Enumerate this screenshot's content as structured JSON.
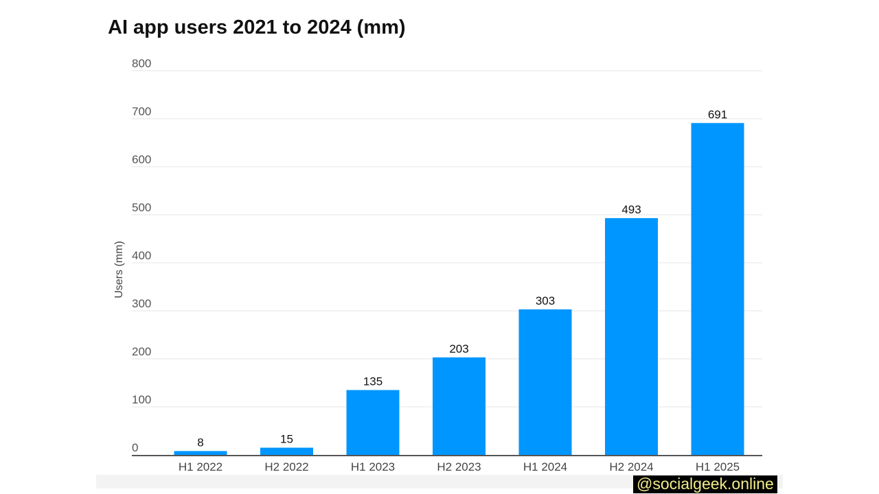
{
  "chart_data": {
    "type": "bar",
    "title": "AI app users 2021 to 2024 (mm)",
    "xlabel": "",
    "ylabel": "Users (mm)",
    "categories": [
      "H1 2022",
      "H2 2022",
      "H1 2023",
      "H2 2023",
      "H1 2024",
      "H2 2024",
      "H1 2025"
    ],
    "values": [
      8,
      15,
      135,
      203,
      303,
      493,
      691
    ],
    "ylim": [
      0,
      800
    ],
    "yticks": [
      0,
      100,
      200,
      300,
      400,
      500,
      600,
      700,
      800
    ],
    "grid": true,
    "bar_color": "#0096ff",
    "data_labels": true
  },
  "watermark": "@socialgeek.online"
}
